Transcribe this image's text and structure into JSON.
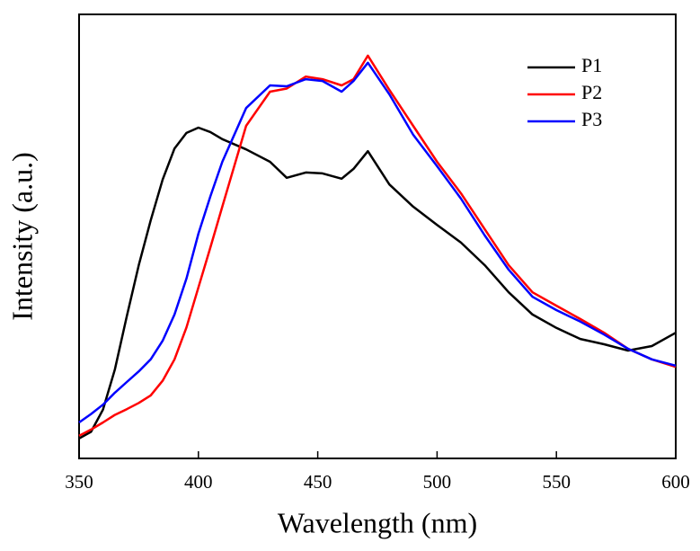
{
  "chart_data": {
    "type": "line",
    "x_label": "Wavelength (nm)",
    "y_label": "Intensity (a.u.)",
    "x": [
      350,
      355,
      360,
      365,
      370,
      375,
      380,
      385,
      390,
      395,
      400,
      405,
      410,
      420,
      430,
      437,
      445,
      452,
      460,
      465,
      471,
      480,
      490,
      500,
      510,
      520,
      530,
      540,
      550,
      560,
      570,
      580,
      590,
      600
    ],
    "series": [
      {
        "name": "P1",
        "color": "#000000",
        "values": [
          4.5,
          6,
          11,
          20,
          32,
          43.5,
          53.6,
          62.8,
          69.8,
          73.3,
          74.5,
          73.5,
          71.9,
          69.6,
          66.8,
          63.2,
          64.4,
          64.2,
          63,
          65.2,
          69.2,
          61.7,
          56.7,
          52.6,
          48.6,
          43.5,
          37.4,
          32.4,
          29.4,
          26.9,
          25.7,
          24.3,
          25.3,
          28.3
        ]
      },
      {
        "name": "P2",
        "color": "#ff0000",
        "values": [
          5.1,
          6.5,
          8.1,
          9.8,
          11.1,
          12.5,
          14.2,
          17.5,
          22.3,
          29.5,
          38.5,
          47.5,
          56.7,
          74.9,
          82.6,
          83.3,
          86,
          85.4,
          84,
          85.4,
          90.7,
          83,
          74.9,
          66.8,
          59.7,
          51.6,
          43.5,
          37.4,
          34.4,
          31.4,
          28.3,
          24.7,
          22.3,
          20.6
        ]
      },
      {
        "name": "P3",
        "color": "#0000ff",
        "values": [
          8.1,
          10,
          12.1,
          14.8,
          17.2,
          19.6,
          22.3,
          26.5,
          32.4,
          40.5,
          50.6,
          59,
          66.8,
          78.9,
          84,
          83.8,
          85.4,
          85,
          82.6,
          85,
          89.1,
          82,
          72.9,
          65.8,
          58.5,
          50.2,
          42.5,
          36.4,
          33.4,
          30.8,
          27.9,
          24.7,
          22.3,
          20.9
        ]
      }
    ],
    "xlim": [
      350,
      600
    ],
    "xticks": [
      350,
      400,
      450,
      500,
      550,
      600
    ],
    "ylim": [
      0,
      100
    ],
    "legend": "upper right"
  }
}
